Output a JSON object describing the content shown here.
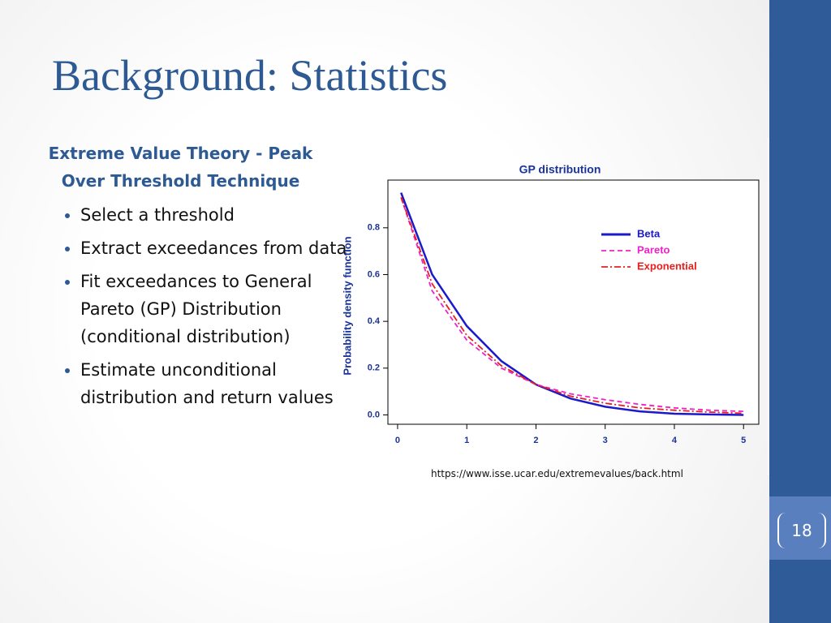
{
  "header": {
    "title": "Background: Statistics"
  },
  "body": {
    "heading": "Extreme Value Theory - Peak Over Threshold Technique",
    "bullets": [
      "Select a threshold",
      "Extract exceedances from data",
      "Fit exceedances to General Pareto (GP) Distribution (conditional distribution)",
      "Estimate unconditional distribution and return values"
    ]
  },
  "source": "https://www.isse.ucar.edu/extremevalues/back.html",
  "page_number": "18",
  "chart_data": {
    "type": "line",
    "title": "GP distribution",
    "y_label": "Probability density function",
    "x": [
      0.05,
      0.5,
      1,
      1.5,
      2,
      2.5,
      3,
      3.5,
      4,
      4.5,
      5
    ],
    "series": [
      {
        "name": "Beta",
        "color": "#1a1acc",
        "line_style": "solid",
        "values": [
          0.95,
          0.6,
          0.38,
          0.23,
          0.13,
          0.07,
          0.035,
          0.015,
          0.005,
          0.002,
          0
        ]
      },
      {
        "name": "Pareto",
        "color": "#ee22cc",
        "line_style": "dashed",
        "values": [
          0.93,
          0.53,
          0.32,
          0.2,
          0.13,
          0.09,
          0.065,
          0.045,
          0.03,
          0.02,
          0.015
        ]
      },
      {
        "name": "Exponential",
        "color": "#e62020",
        "line_style": "dashdot",
        "values": [
          0.93,
          0.56,
          0.34,
          0.21,
          0.13,
          0.08,
          0.05,
          0.03,
          0.02,
          0.012,
          0.007
        ]
      }
    ],
    "xlim": [
      -0.14,
      5.22
    ],
    "ylim": [
      -0.04,
      1.004
    ],
    "xticks": [
      0,
      1,
      2,
      3,
      4,
      5
    ],
    "yticks": [
      {
        "value": 0,
        "label": "0.0"
      },
      0.2,
      0.4,
      0.6,
      0.8
    ],
    "legend": "upper right"
  }
}
